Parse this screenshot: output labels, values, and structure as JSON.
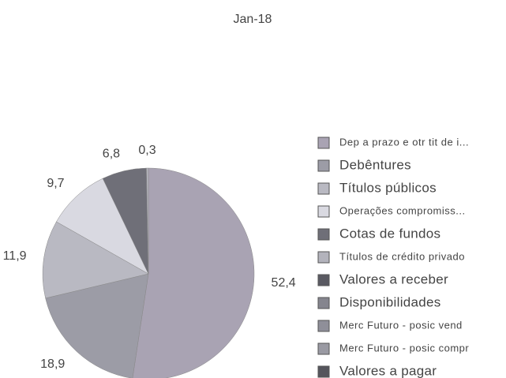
{
  "chart_data": {
    "type": "pie",
    "title": "Jan-18",
    "categories": [
      "Dep a prazo e otr tit de i...",
      "Debêntures",
      "Títulos públicos",
      "Operações compromiss...",
      "Cotas de fundos",
      "Títulos de crédito privado",
      "Valores a receber",
      "Disponibilidades",
      "Merc Futuro - posic vend",
      "Merc Futuro - posic compr",
      "Valores a pagar"
    ],
    "values": [
      52.4,
      18.9,
      11.9,
      9.7,
      6.8,
      0.3,
      0,
      0,
      0,
      0,
      0
    ],
    "value_labels": [
      "52,4",
      "18,9",
      "11,9",
      "9,7",
      "6,8",
      "0,3",
      null,
      null,
      null,
      null,
      null
    ],
    "colors": [
      "#a9a3b3",
      "#9c9ca6",
      "#b9b9c2",
      "#d9d9e1",
      "#6f6f78",
      "#b3b3bc",
      "#5a5a62",
      "#85858e",
      "#8f8f99",
      "#9a9aa3",
      "#55555c"
    ]
  }
}
